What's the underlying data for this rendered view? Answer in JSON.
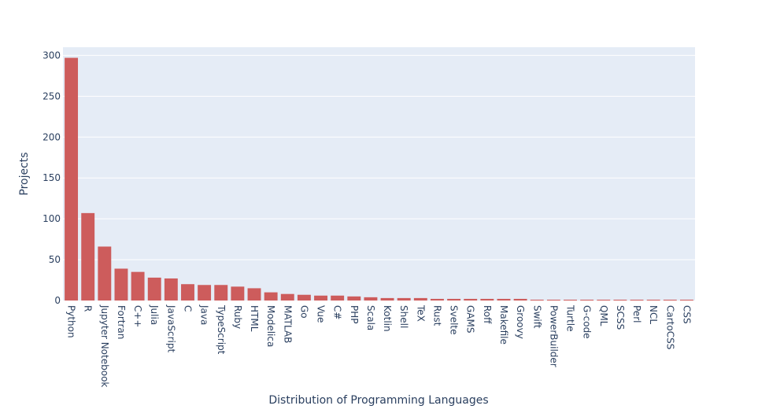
{
  "chart_data": {
    "type": "bar",
    "title": "",
    "xlabel": "Distribution of Programming Languages",
    "ylabel": "Projects",
    "ylim": [
      0,
      310
    ],
    "yticks": [
      0,
      50,
      100,
      150,
      200,
      250,
      300
    ],
    "grid": true,
    "bar_color": "#cd5c5c",
    "plot_bg": "#e5ecf6",
    "categories": [
      "Python",
      "R",
      "Jupyter Notebook",
      "Fortran",
      "C++",
      "Julia",
      "JavaScript",
      "C",
      "Java",
      "TypeScript",
      "Ruby",
      "HTML",
      "Modelica",
      "MATLAB",
      "Go",
      "Vue",
      "C#",
      "PHP",
      "Scala",
      "Kotlin",
      "Shell",
      "TeX",
      "Rust",
      "Svelte",
      "GAMS",
      "Roff",
      "Makefile",
      "Groovy",
      "Swift",
      "PowerBuilder",
      "Turtle",
      "G-code",
      "QML",
      "SCSS",
      "Perl",
      "NCL",
      "CartoCSS",
      "CSS"
    ],
    "values": [
      297,
      107,
      66,
      39,
      35,
      28,
      27,
      20,
      19,
      19,
      17,
      15,
      10,
      8,
      7,
      6,
      6,
      5,
      4,
      3,
      3,
      3,
      2,
      2,
      2,
      2,
      2,
      2,
      1,
      1,
      1,
      1,
      1,
      1,
      1,
      1,
      1,
      1
    ]
  }
}
